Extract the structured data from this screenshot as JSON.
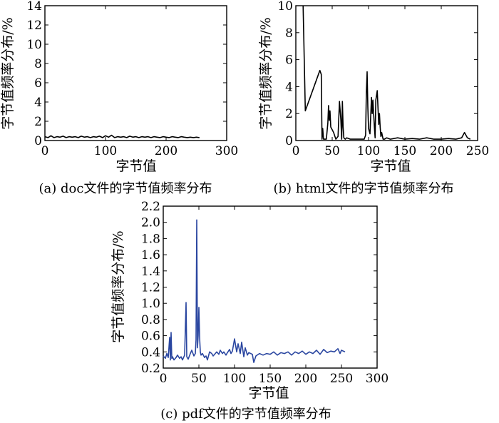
{
  "chart_data": [
    {
      "type": "line",
      "color": "#000000",
      "caption": "(a) doc文件的字节值频率分布",
      "xlabel": "字节值",
      "ylabel": "字节值频率分布/%",
      "xlim": [
        0,
        300
      ],
      "ylim": [
        0,
        14
      ],
      "xticks": [
        0,
        100,
        200,
        300
      ],
      "yticks": [
        0,
        2,
        4,
        6,
        8,
        10,
        12,
        14
      ],
      "grid": false,
      "series": [
        {
          "x": [
            0,
            5,
            10,
            15,
            20,
            25,
            30,
            35,
            40,
            45,
            50,
            55,
            60,
            65,
            70,
            75,
            80,
            85,
            90,
            95,
            100,
            105,
            110,
            115,
            120,
            125,
            130,
            135,
            140,
            145,
            150,
            155,
            160,
            165,
            170,
            175,
            180,
            185,
            190,
            195,
            200,
            205,
            210,
            215,
            220,
            225,
            230,
            235,
            240,
            245,
            250,
            255
          ],
          "y": [
            0.4,
            0.3,
            0.5,
            0.3,
            0.4,
            0.35,
            0.45,
            0.3,
            0.4,
            0.35,
            0.4,
            0.3,
            0.45,
            0.35,
            0.4,
            0.3,
            0.4,
            0.35,
            0.45,
            0.3,
            0.5,
            0.35,
            0.55,
            0.3,
            0.4,
            0.35,
            0.4,
            0.3,
            0.45,
            0.35,
            0.4,
            0.3,
            0.4,
            0.35,
            0.4,
            0.3,
            0.4,
            0.35,
            0.3,
            0.4,
            0.35,
            0.3,
            0.4,
            0.35,
            0.3,
            0.4,
            0.35,
            0.3,
            0.35,
            0.3,
            0.35,
            0.3
          ]
        }
      ]
    },
    {
      "type": "line",
      "color": "#000000",
      "caption": "(b) html文件的字节值频率分布",
      "xlabel": "字节值",
      "ylabel": "字节值频率分布/%",
      "xlim": [
        0,
        250
      ],
      "ylim": [
        0,
        10
      ],
      "xticks": [
        0,
        50,
        100,
        150,
        200,
        250
      ],
      "yticks": [
        0,
        2,
        4,
        6,
        8,
        10
      ],
      "grid": false,
      "series": [
        {
          "x": [
            10,
            13,
            33,
            35,
            36,
            37,
            38,
            40,
            42,
            44,
            45,
            46,
            47,
            48,
            50,
            52,
            55,
            58,
            60,
            62,
            63,
            64,
            65,
            66,
            68,
            70,
            75,
            80,
            85,
            90,
            94,
            96,
            97,
            98,
            99,
            100,
            102,
            104,
            105,
            106,
            108,
            109,
            110,
            112,
            114,
            115,
            116,
            117,
            118,
            120,
            122,
            125,
            130,
            140,
            150,
            160,
            170,
            180,
            190,
            200,
            210,
            220,
            228,
            232,
            236,
            240
          ],
          "y": [
            10,
            2.2,
            5.2,
            4.9,
            0.1,
            0.9,
            0.1,
            0.1,
            0.1,
            1.3,
            2.6,
            1.5,
            2.2,
            1.0,
            0.8,
            0.6,
            0.1,
            0.3,
            2.9,
            1.5,
            0.1,
            2.9,
            1.0,
            0.2,
            0.1,
            0.2,
            0.1,
            0.1,
            0.1,
            0.1,
            0.1,
            0.4,
            3.5,
            5.1,
            2.5,
            0.9,
            0.5,
            3.2,
            2.0,
            3.0,
            1.0,
            0.2,
            3.0,
            3.7,
            1.2,
            2.0,
            1.0,
            0.3,
            0.6,
            0.1,
            0.1,
            0.2,
            0.1,
            0.2,
            0.1,
            0.15,
            0.1,
            0.2,
            0.1,
            0.1,
            0.15,
            0.1,
            0.2,
            0.6,
            0.2,
            0.1
          ]
        }
      ]
    },
    {
      "type": "line",
      "color": "#2a46a0",
      "caption": "(c) pdf文件的字节值频率分布",
      "xlabel": "字节值",
      "ylabel": "字节值频率分布/%",
      "xlim": [
        0,
        300
      ],
      "ylim": [
        0.2,
        2.2
      ],
      "xticks": [
        0,
        50,
        100,
        150,
        200,
        250,
        300
      ],
      "yticks": [
        0.2,
        0.4,
        0.6,
        0.8,
        1.0,
        1.2,
        1.4,
        1.6,
        1.8,
        2.0,
        2.2
      ],
      "grid": false,
      "series": [
        {
          "x": [
            0,
            3,
            5,
            7,
            9,
            10,
            11,
            12,
            13,
            15,
            18,
            20,
            23,
            25,
            27,
            30,
            32,
            33,
            35,
            38,
            40,
            43,
            45,
            46,
            47,
            48,
            49,
            50,
            51,
            52,
            53,
            55,
            58,
            60,
            62,
            65,
            68,
            70,
            73,
            75,
            78,
            80,
            83,
            85,
            88,
            90,
            93,
            95,
            97,
            100,
            103,
            105,
            108,
            110,
            113,
            115,
            118,
            120,
            125,
            127,
            130,
            135,
            140,
            145,
            150,
            155,
            160,
            165,
            170,
            175,
            180,
            185,
            190,
            195,
            200,
            205,
            210,
            215,
            220,
            225,
            230,
            235,
            240,
            245,
            248,
            250,
            255
          ],
          "y": [
            0.35,
            0.32,
            0.38,
            0.33,
            0.58,
            0.3,
            0.64,
            0.32,
            0.34,
            0.3,
            0.33,
            0.36,
            0.32,
            0.34,
            0.3,
            0.36,
            1.01,
            0.34,
            0.31,
            0.38,
            0.42,
            0.35,
            0.38,
            0.55,
            2.03,
            0.45,
            0.6,
            0.95,
            0.58,
            0.4,
            0.36,
            0.38,
            0.33,
            0.35,
            0.3,
            0.4,
            0.38,
            0.35,
            0.38,
            0.4,
            0.37,
            0.42,
            0.38,
            0.4,
            0.36,
            0.39,
            0.43,
            0.38,
            0.41,
            0.56,
            0.4,
            0.5,
            0.38,
            0.52,
            0.34,
            0.45,
            0.36,
            0.39,
            0.37,
            0.27,
            0.35,
            0.38,
            0.36,
            0.38,
            0.37,
            0.4,
            0.36,
            0.39,
            0.38,
            0.4,
            0.36,
            0.4,
            0.38,
            0.41,
            0.37,
            0.4,
            0.38,
            0.42,
            0.37,
            0.43,
            0.39,
            0.41,
            0.4,
            0.44,
            0.38,
            0.42,
            0.4
          ]
        }
      ]
    }
  ]
}
